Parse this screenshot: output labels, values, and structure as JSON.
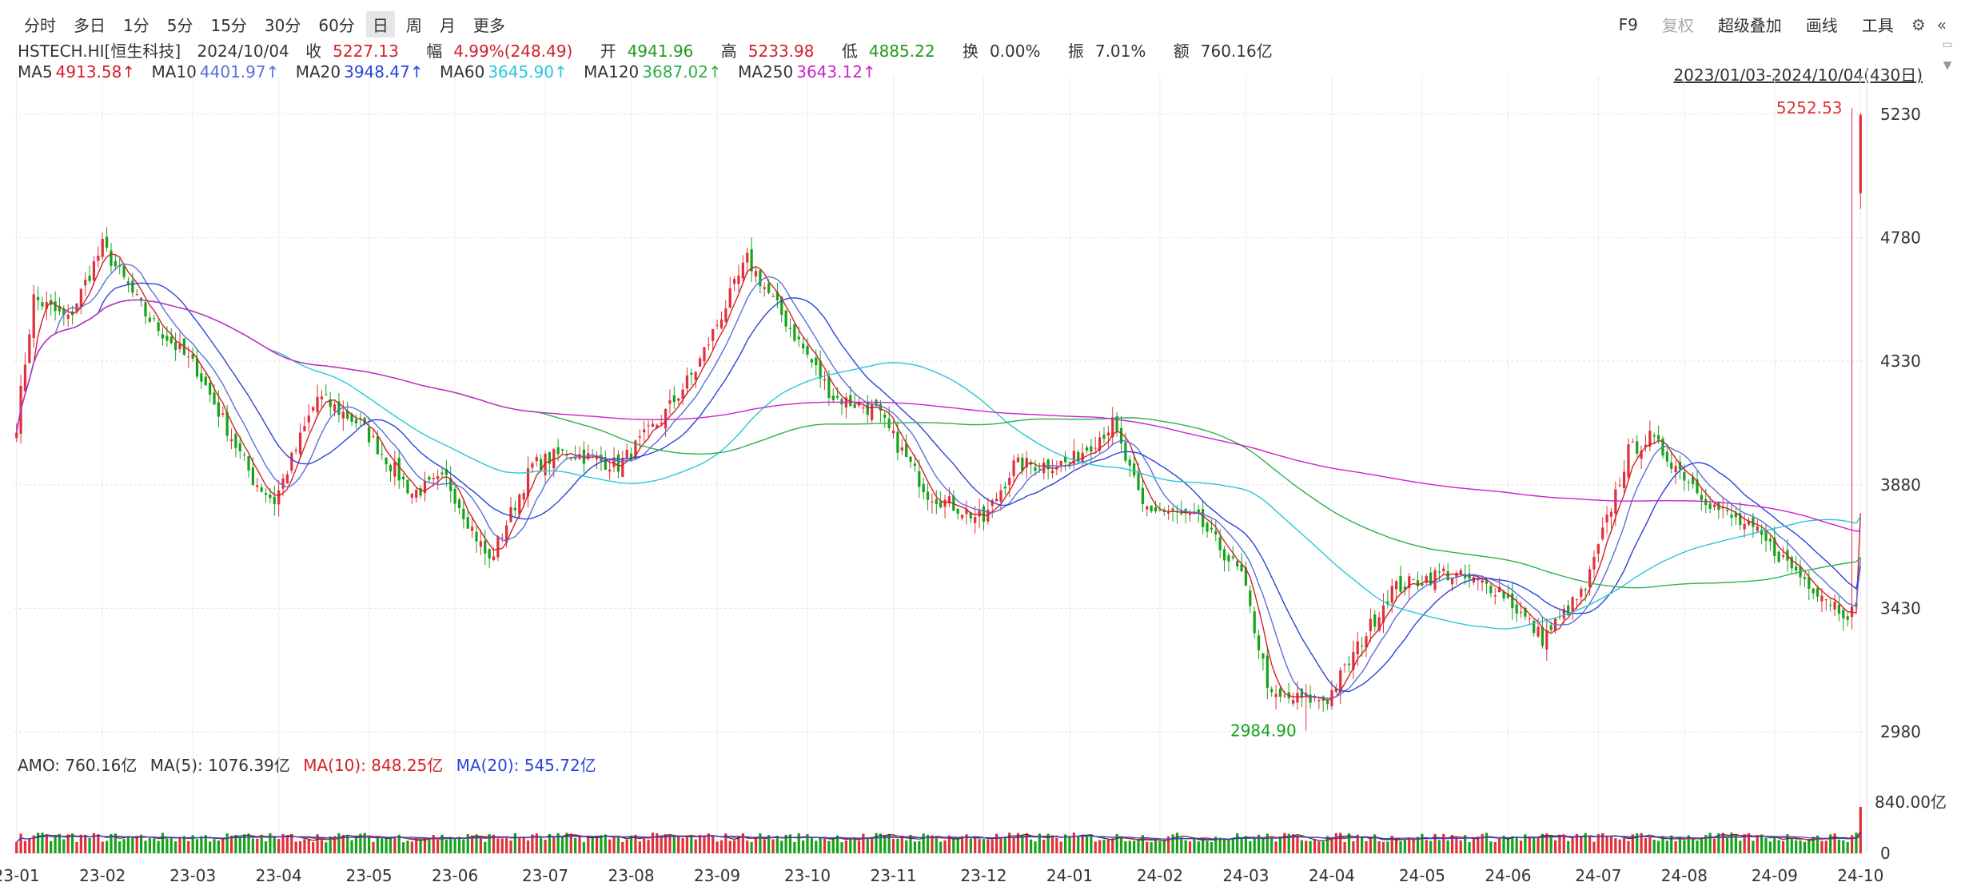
{
  "toolbar": {
    "periods": [
      "分时",
      "多日",
      "1分",
      "5分",
      "15分",
      "30分",
      "60分",
      "日",
      "周",
      "月",
      "更多"
    ],
    "active_period": "日",
    "right": {
      "f9": "F9",
      "fuquan": "复权",
      "overlay": "超级叠加",
      "draw": "画线",
      "tools": "工具"
    }
  },
  "quote": {
    "symbol": "HSTECH.HI[恒生科技]",
    "date": "2024/10/04",
    "close_label": "收",
    "close": "5227.13",
    "change_label": "幅",
    "change": "4.99%(248.49)",
    "open_label": "开",
    "open": "4941.96",
    "high_label": "高",
    "high": "5233.98",
    "low_label": "低",
    "low": "4885.22",
    "turnover_label": "换",
    "turnover": "0.00%",
    "amplitude_label": "振",
    "amplitude": "7.01%",
    "amount_label": "额",
    "amount": "760.16亿"
  },
  "ma": {
    "ma5_label": "MA5",
    "ma5": "4913.58↑",
    "ma10_label": "MA10",
    "ma10": "4401.97↑",
    "ma20_label": "MA20",
    "ma20": "3948.47↑",
    "ma60_label": "MA60",
    "ma60": "3645.90↑",
    "ma120_label": "MA120",
    "ma120": "3687.02↑",
    "ma250_label": "MA250",
    "ma250": "3643.12↑"
  },
  "range_text": "2023/01/03-2024/10/04(430日)",
  "amo": {
    "amo": "AMO: 760.16亿",
    "ma5": "MA(5): 1076.39亿",
    "ma10": "MA(10): 848.25亿",
    "ma20": "MA(20): 545.72亿"
  },
  "colors": {
    "up": "#e0303a",
    "down": "#16a31a",
    "ma5": "#d3202a",
    "ma10": "#5b6fd8",
    "ma20": "#2a44d8",
    "ma60": "#26c8d8",
    "ma120": "#2fb04a",
    "ma250": "#cc22cc",
    "grid": "#e4e4e4"
  },
  "chart_data": {
    "type": "candlestick",
    "yticks": [
      2980,
      3430,
      3880,
      4330,
      4780,
      5230
    ],
    "ylim": [
      2925,
      5340
    ],
    "xticks": [
      "23-01",
      "23-02",
      "23-03",
      "23-04",
      "23-05",
      "23-06",
      "23-07",
      "23-08",
      "23-09",
      "23-10",
      "23-11",
      "23-12",
      "24-01",
      "24-02",
      "24-03",
      "24-04",
      "24-05",
      "24-06",
      "24-07",
      "24-08",
      "24-09",
      "24-10"
    ],
    "x_total_days": 430,
    "annotations": {
      "high": "5252.53",
      "low": "2984.90"
    },
    "volume_ticks": [
      "840.00亿",
      "0"
    ],
    "volume_max": 1350,
    "keypoints": [
      [
        0,
        4100
      ],
      [
        4,
        4560
      ],
      [
        12,
        4480
      ],
      [
        20,
        4750
      ],
      [
        30,
        4500
      ],
      [
        42,
        4300
      ],
      [
        55,
        3900
      ],
      [
        60,
        3820
      ],
      [
        70,
        4200
      ],
      [
        80,
        4100
      ],
      [
        92,
        3850
      ],
      [
        100,
        3900
      ],
      [
        110,
        3600
      ],
      [
        120,
        3950
      ],
      [
        128,
        4000
      ],
      [
        140,
        3950
      ],
      [
        150,
        4120
      ],
      [
        158,
        4300
      ],
      [
        170,
        4700
      ],
      [
        182,
        4400
      ],
      [
        190,
        4200
      ],
      [
        200,
        4150
      ],
      [
        212,
        3850
      ],
      [
        225,
        3750
      ],
      [
        232,
        3950
      ],
      [
        245,
        3960
      ],
      [
        255,
        4100
      ],
      [
        262,
        3800
      ],
      [
        275,
        3750
      ],
      [
        285,
        3550
      ],
      [
        292,
        3100
      ],
      [
        305,
        3100
      ],
      [
        320,
        3500
      ],
      [
        332,
        3560
      ],
      [
        345,
        3500
      ],
      [
        355,
        3320
      ],
      [
        365,
        3500
      ],
      [
        375,
        4000
      ],
      [
        380,
        4050
      ],
      [
        395,
        3800
      ],
      [
        405,
        3700
      ],
      [
        415,
        3550
      ],
      [
        425,
        3420
      ],
      [
        435,
        3400
      ],
      [
        448,
        3450
      ],
      [
        455,
        3470
      ],
      [
        462,
        3600
      ],
      [
        468,
        3800
      ],
      [
        472,
        4450
      ],
      [
        476,
        4800
      ],
      [
        479,
        5227
      ]
    ]
  }
}
